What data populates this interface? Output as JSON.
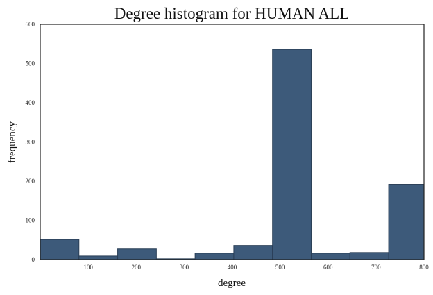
{
  "chart_data": {
    "type": "bar",
    "title": "Degree histogram for HUMAN  ALL",
    "xlabel": "degree",
    "ylabel": "frequency",
    "xlim": [
      0,
      800
    ],
    "ylim": [
      0,
      600
    ],
    "xticks": [
      100,
      200,
      300,
      400,
      500,
      600,
      700,
      800
    ],
    "yticks": [
      0,
      100,
      200,
      300,
      400,
      500,
      600
    ],
    "grid": false,
    "bins": [
      {
        "start": 0,
        "end": 80.7,
        "value": 51
      },
      {
        "start": 80.7,
        "end": 161.4,
        "value": 9
      },
      {
        "start": 161.4,
        "end": 242.1,
        "value": 27
      },
      {
        "start": 242.1,
        "end": 322.8,
        "value": 2
      },
      {
        "start": 322.8,
        "end": 403.5,
        "value": 16
      },
      {
        "start": 403.5,
        "end": 484.2,
        "value": 36
      },
      {
        "start": 484.2,
        "end": 564.9,
        "value": 536
      },
      {
        "start": 564.9,
        "end": 645.6,
        "value": 16
      },
      {
        "start": 645.6,
        "end": 726.3,
        "value": 18
      },
      {
        "start": 726.3,
        "end": 800,
        "value": 192
      }
    ]
  }
}
